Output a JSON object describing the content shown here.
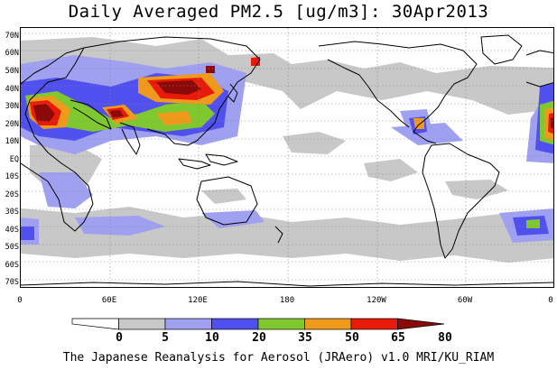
{
  "title": "Daily Averaged PM2.5 [ug/m3]: 30Apr2013",
  "footer": "The Japanese Reanalysis for Aerosol (JRAero) v1.0 MRI/KU_RIAM",
  "latitude_labels": [
    "70N",
    "60N",
    "50N",
    "40N",
    "30N",
    "20N",
    "10N",
    "EQ",
    "10S",
    "20S",
    "30S",
    "40S",
    "50S",
    "60S",
    "70S"
  ],
  "longitude_labels": [
    "0",
    "60E",
    "120E",
    "180",
    "120W",
    "60W",
    "0"
  ],
  "colorbar": {
    "thresholds": [
      "0",
      "5",
      "10",
      "20",
      "35",
      "50",
      "65",
      "80"
    ],
    "colors": [
      "#ffffff",
      "#c8c8c8",
      "#a0a0f0",
      "#5050ee",
      "#80c830",
      "#f09a1c",
      "#e81a0a",
      "#8a0a0a"
    ]
  },
  "map": {
    "projection": "equirectangular",
    "lon_range": [
      0,
      360
    ],
    "lat_range": [
      -75,
      75
    ],
    "gridlines": "dotted"
  }
}
